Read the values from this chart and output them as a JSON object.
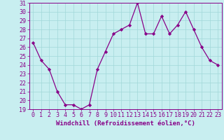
{
  "hours": [
    0,
    1,
    2,
    3,
    4,
    5,
    6,
    7,
    8,
    9,
    10,
    11,
    12,
    13,
    14,
    15,
    16,
    17,
    18,
    19,
    20,
    21,
    22,
    23
  ],
  "values": [
    26.5,
    24.5,
    23.5,
    21.0,
    19.5,
    19.5,
    19.0,
    19.5,
    23.5,
    25.5,
    27.5,
    28.0,
    28.5,
    31.0,
    27.5,
    27.5,
    29.5,
    27.5,
    28.5,
    30.0,
    28.0,
    26.0,
    24.5,
    24.0
  ],
  "line_color": "#880088",
  "marker": "D",
  "marker_size": 2.2,
  "bg_color": "#c8eef0",
  "grid_color": "#a0d8d8",
  "xlabel": "Windchill (Refroidissement éolien,°C)",
  "ylim": [
    19,
    31
  ],
  "xlim": [
    -0.5,
    23.5
  ],
  "yticks": [
    19,
    20,
    21,
    22,
    23,
    24,
    25,
    26,
    27,
    28,
    29,
    30,
    31
  ],
  "xticks": [
    0,
    1,
    2,
    3,
    4,
    5,
    6,
    7,
    8,
    9,
    10,
    11,
    12,
    13,
    14,
    15,
    16,
    17,
    18,
    19,
    20,
    21,
    22,
    23
  ],
  "tick_color": "#880088",
  "label_color": "#880088",
  "xlabel_fontsize": 6.5,
  "tick_fontsize": 6.0,
  "spine_color": "#880088"
}
